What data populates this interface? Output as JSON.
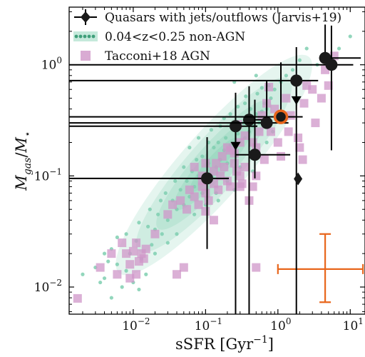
{
  "chart_data": {
    "type": "scatter",
    "title": "",
    "xlabel": "sSFR [Gyr⁻¹]",
    "ylabel": "M_gas / M_⋆",
    "x_scale": "log",
    "y_scale": "log",
    "xlim": [
      0.0013,
      16
    ],
    "ylim": [
      0.0057,
      3.3
    ],
    "grid": false,
    "legend_position": "top-right",
    "x_ticks": [
      {
        "value": 0.01,
        "base": "10",
        "exp": "−2"
      },
      {
        "value": 0.1,
        "base": "10",
        "exp": "−1"
      },
      {
        "value": 1,
        "base": "10",
        "exp": "0"
      },
      {
        "value": 10,
        "base": "10",
        "exp": "1"
      }
    ],
    "y_ticks": [
      {
        "value": 0.01,
        "base": "10",
        "exp": "−2"
      },
      {
        "value": 0.1,
        "base": "10",
        "exp": "−1"
      },
      {
        "value": 1,
        "base": "10",
        "exp": "0"
      }
    ],
    "colors": {
      "quasar": "#1a1a1a",
      "nonagn": "#7fcfb0",
      "nonagn_contour": "#5cbf9a",
      "tacconi": "#cf96c8",
      "orange": "#e8661c"
    },
    "legend": [
      {
        "label": "Quasars with jets/outflows (Jarvis+19)",
        "marker": "diamond"
      },
      {
        "label": "0.04<z<0.25 non-AGN",
        "marker": "dots"
      },
      {
        "label": "Tacconi+18 AGN",
        "marker": "square"
      }
    ],
    "series": [
      {
        "name": "Quasars with jets/outflows (Jarvis+19)",
        "points": [
          {
            "x": 0.105,
            "y": 0.095,
            "xerr": [
              0.105,
              0.105
            ],
            "yerr": [
              0.073,
              0.128
            ]
          },
          {
            "x": 0.26,
            "y": 0.28,
            "xerr": [
              0.26,
              0.26
            ],
            "yerr": [
              0.28,
              0.28
            ],
            "upper_limit": true
          },
          {
            "x": 0.4,
            "y": 0.32,
            "xerr": [
              0.0014,
              0.4
            ],
            "yerr": [
              0.32,
              0.32
            ]
          },
          {
            "x": 0.48,
            "y": 0.155,
            "xerr": [
              0.22,
              1.0
            ],
            "yerr": [
              0.06,
              0.33
            ]
          },
          {
            "x": 0.7,
            "y": 0.3,
            "xerr": [
              0.7,
              0.7
            ],
            "yerr": [
              0.0053,
              0.42
            ]
          },
          {
            "x": 1.8,
            "y": 0.72,
            "xerr": [
              1.8,
              1.8
            ],
            "yerr": [
              0.72,
              0.72
            ],
            "upper_limit": true
          },
          {
            "x": 4.5,
            "y": 1.15,
            "xerr": [
              0.77,
              9.5
            ],
            "yerr": [
              0.019,
              1.15
            ]
          },
          {
            "x": 5.5,
            "y": 1.0,
            "xerr": [
              5.5,
              5.5
            ],
            "yerr": [
              0.83,
              1.25
            ]
          },
          {
            "x": 1.1,
            "y": 0.34,
            "xerr": [
              1.1,
              1.1
            ],
            "yerr": [
              0.034,
              0.71
            ],
            "highlight": true
          },
          {
            "x": 1.9,
            "y": 0.094,
            "marker": "diamond"
          }
        ]
      },
      {
        "name": "0.04<z<0.25 non-AGN",
        "points": [
          [
            0.005,
            0.008
          ],
          [
            0.004,
            0.012
          ],
          [
            0.007,
            0.01
          ],
          [
            0.01,
            0.011
          ],
          [
            0.012,
            0.0095
          ],
          [
            0.006,
            0.016
          ],
          [
            0.008,
            0.014
          ],
          [
            0.015,
            0.013
          ],
          [
            0.009,
            0.02
          ],
          [
            0.013,
            0.018
          ],
          [
            0.02,
            0.02
          ],
          [
            0.003,
            0.015
          ],
          [
            0.005,
            0.022
          ],
          [
            0.011,
            0.026
          ],
          [
            0.018,
            0.024
          ],
          [
            0.025,
            0.03
          ],
          [
            0.016,
            0.035
          ],
          [
            0.03,
            0.04
          ],
          [
            0.022,
            0.045
          ],
          [
            0.04,
            0.05
          ],
          [
            0.035,
            0.06
          ],
          [
            0.05,
            0.055
          ],
          [
            0.028,
            0.07
          ],
          [
            0.045,
            0.075
          ],
          [
            0.06,
            0.065
          ],
          [
            0.07,
            0.08
          ],
          [
            0.055,
            0.09
          ],
          [
            0.09,
            0.07
          ],
          [
            0.08,
            0.1
          ],
          [
            0.1,
            0.085
          ],
          [
            0.065,
            0.11
          ],
          [
            0.12,
            0.1
          ],
          [
            0.14,
            0.12
          ],
          [
            0.11,
            0.13
          ],
          [
            0.09,
            0.15
          ],
          [
            0.16,
            0.14
          ],
          [
            0.2,
            0.13
          ],
          [
            0.18,
            0.17
          ],
          [
            0.13,
            0.18
          ],
          [
            0.15,
            0.2
          ],
          [
            0.22,
            0.19
          ],
          [
            0.25,
            0.16
          ],
          [
            0.19,
            0.22
          ],
          [
            0.3,
            0.2
          ],
          [
            0.28,
            0.24
          ],
          [
            0.35,
            0.22
          ],
          [
            0.24,
            0.26
          ],
          [
            0.4,
            0.25
          ],
          [
            0.33,
            0.3
          ],
          [
            0.45,
            0.28
          ],
          [
            0.38,
            0.34
          ],
          [
            0.55,
            0.3
          ],
          [
            0.5,
            0.36
          ],
          [
            0.6,
            0.38
          ],
          [
            0.42,
            0.4
          ],
          [
            0.7,
            0.4
          ],
          [
            0.65,
            0.45
          ],
          [
            0.8,
            0.5
          ],
          [
            0.35,
            0.45
          ],
          [
            0.52,
            0.55
          ],
          [
            0.9,
            0.6
          ],
          [
            1.1,
            0.7
          ],
          [
            0.75,
            0.65
          ],
          [
            1.3,
            0.8
          ],
          [
            1.6,
            0.9
          ],
          [
            2.0,
            1.1
          ],
          [
            2.5,
            1.4
          ],
          [
            3.5,
            1.0
          ],
          [
            7.0,
            1.4
          ],
          [
            10.0,
            1.8
          ],
          [
            0.25,
            0.7
          ],
          [
            0.5,
            0.8
          ],
          [
            0.18,
            0.33
          ],
          [
            0.12,
            0.26
          ],
          [
            0.08,
            0.22
          ],
          [
            0.06,
            0.18
          ],
          [
            0.3,
            0.12
          ],
          [
            0.45,
            0.11
          ],
          [
            0.2,
            0.09
          ],
          [
            0.14,
            0.07
          ],
          [
            0.04,
            0.03
          ],
          [
            0.02,
            0.033
          ],
          [
            0.03,
            0.025
          ],
          [
            0.07,
            0.045
          ],
          [
            0.1,
            0.055
          ],
          [
            0.15,
            0.06
          ],
          [
            0.25,
            0.075
          ],
          [
            0.55,
            0.15
          ],
          [
            0.7,
            0.2
          ],
          [
            0.85,
            0.25
          ],
          [
            0.017,
            0.05
          ],
          [
            0.012,
            0.038
          ],
          [
            0.024,
            0.06
          ],
          [
            0.038,
            0.09
          ],
          [
            0.05,
            0.12
          ],
          [
            0.075,
            0.14
          ],
          [
            0.11,
            0.2
          ],
          [
            0.16,
            0.28
          ],
          [
            0.22,
            0.36
          ],
          [
            0.28,
            0.42
          ],
          [
            0.36,
            0.52
          ],
          [
            0.6,
            0.62
          ],
          [
            0.008,
            0.03
          ],
          [
            0.006,
            0.028
          ],
          [
            0.004,
            0.02
          ],
          [
            0.0035,
            0.011
          ],
          [
            0.0045,
            0.017
          ],
          [
            0.002,
            0.013
          ]
        ]
      },
      {
        "name": "Tacconi+18 AGN",
        "points": [
          [
            0.0017,
            0.0079
          ],
          [
            0.0035,
            0.015
          ],
          [
            0.005,
            0.02
          ],
          [
            0.006,
            0.013
          ],
          [
            0.007,
            0.025
          ],
          [
            0.008,
            0.02
          ],
          [
            0.009,
            0.016
          ],
          [
            0.01,
            0.021
          ],
          [
            0.011,
            0.025
          ],
          [
            0.012,
            0.017
          ],
          [
            0.013,
            0.02
          ],
          [
            0.011,
            0.013
          ],
          [
            0.014,
            0.018
          ],
          [
            0.015,
            0.022
          ],
          [
            0.009,
            0.012
          ],
          [
            0.02,
            0.03
          ],
          [
            0.04,
            0.013
          ],
          [
            0.05,
            0.015
          ],
          [
            0.03,
            0.045
          ],
          [
            0.035,
            0.055
          ],
          [
            0.045,
            0.06
          ],
          [
            0.055,
            0.05
          ],
          [
            0.06,
            0.075
          ],
          [
            0.07,
            0.065
          ],
          [
            0.08,
            0.055
          ],
          [
            0.09,
            0.08
          ],
          [
            0.1,
            0.07
          ],
          [
            0.11,
            0.06
          ],
          [
            0.13,
            0.085
          ],
          [
            0.15,
            0.075
          ],
          [
            0.16,
            0.1
          ],
          [
            0.18,
            0.12
          ],
          [
            0.2,
            0.09
          ],
          [
            0.22,
            0.08
          ],
          [
            0.25,
            0.13
          ],
          [
            0.27,
            0.11
          ],
          [
            0.3,
            0.1
          ],
          [
            0.32,
            0.085
          ],
          [
            0.35,
            0.12
          ],
          [
            0.4,
            0.06
          ],
          [
            0.45,
            0.08
          ],
          [
            0.5,
            0.1
          ],
          [
            0.13,
            0.11
          ],
          [
            0.17,
            0.15
          ],
          [
            0.2,
            0.18
          ],
          [
            0.22,
            0.17
          ],
          [
            0.25,
            0.16
          ],
          [
            0.3,
            0.2
          ],
          [
            0.35,
            0.23
          ],
          [
            0.45,
            0.2
          ],
          [
            0.55,
            0.25
          ],
          [
            0.6,
            0.35
          ],
          [
            0.7,
            0.45
          ],
          [
            0.8,
            0.25
          ],
          [
            0.9,
            0.4
          ],
          [
            1.0,
            0.2
          ],
          [
            1.1,
            0.15
          ],
          [
            1.3,
            0.5
          ],
          [
            1.4,
            0.25
          ],
          [
            1.5,
            0.35
          ],
          [
            1.9,
            0.22
          ],
          [
            2.0,
            0.18
          ],
          [
            2.3,
            0.45
          ],
          [
            2.5,
            0.65
          ],
          [
            3.0,
            0.6
          ],
          [
            4.0,
            0.5
          ],
          [
            4.5,
            0.9
          ],
          [
            5.0,
            0.65
          ],
          [
            6.0,
            1.2
          ],
          [
            2.2,
            0.14
          ],
          [
            3.3,
            0.3
          ],
          [
            0.75,
            0.63
          ],
          [
            0.14,
            0.13
          ],
          [
            0.09,
            0.1
          ],
          [
            0.07,
            0.12
          ],
          [
            0.1,
            0.13
          ],
          [
            0.28,
            0.29
          ],
          [
            0.3,
            0.08
          ],
          [
            0.5,
            0.18
          ],
          [
            0.65,
            0.14
          ],
          [
            0.13,
            0.04
          ],
          [
            0.1,
            0.048
          ],
          [
            0.5,
            0.015
          ],
          [
            0.09,
            0.09
          ]
        ]
      }
    ],
    "error_bar_box": {
      "x": 4.5,
      "y": 0.0145,
      "xerr": [
        3.5,
        10.5
      ],
      "yerr": [
        0.0072,
        0.0155
      ]
    }
  }
}
